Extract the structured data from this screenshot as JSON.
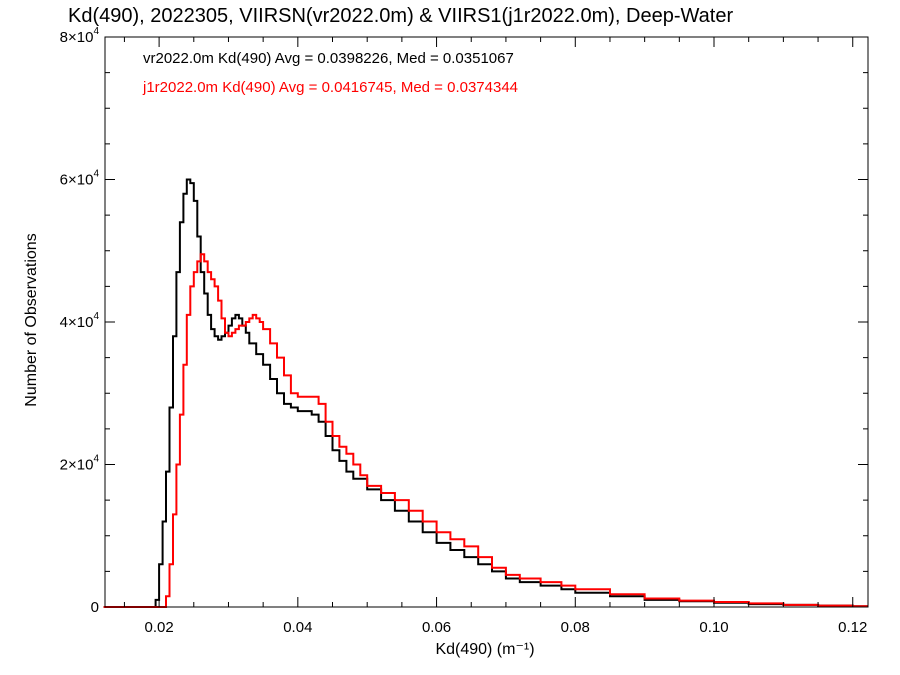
{
  "chart_data": {
    "type": "line",
    "step": true,
    "title": "Kd(490), 2022305, VIIRSN(vr2022.0m) & VIIRS1(j1r2022.0m), Deep-Water",
    "xlabel": "Kd(490) (m⁻¹)",
    "ylabel": "Number of Observations",
    "xlim": [
      0.0122,
      0.1222
    ],
    "ylim": [
      0,
      80000
    ],
    "xticks": [
      0.02,
      0.04,
      0.06,
      0.08,
      0.1,
      0.12
    ],
    "xtick_labels": [
      "0.02",
      "0.04",
      "0.06",
      "0.08",
      "0.10",
      "0.12"
    ],
    "yticks": [
      0,
      20000,
      40000,
      60000,
      80000
    ],
    "ytick_labels": [
      {
        "base": "0",
        "exp": ""
      },
      {
        "base": "2×10",
        "exp": "4"
      },
      {
        "base": "4×10",
        "exp": "4"
      },
      {
        "base": "6×10",
        "exp": "4"
      },
      {
        "base": "8×10",
        "exp": "4"
      }
    ],
    "annotations": [
      "vr2022.0m Kd(490) Avg = 0.0398226, Med = 0.0351067",
      "j1r2022.0m Kd(490) Avg = 0.0416745, Med = 0.0374344"
    ],
    "series": [
      {
        "color": "#000000",
        "x": [
          0.012,
          0.019,
          0.0195,
          0.02,
          0.0205,
          0.021,
          0.0215,
          0.022,
          0.0225,
          0.023,
          0.0235,
          0.024,
          0.0245,
          0.025,
          0.0255,
          0.026,
          0.0265,
          0.027,
          0.0275,
          0.028,
          0.0285,
          0.029,
          0.0295,
          0.03,
          0.0305,
          0.031,
          0.0315,
          0.032,
          0.0325,
          0.033,
          0.034,
          0.035,
          0.036,
          0.037,
          0.038,
          0.039,
          0.04,
          0.041,
          0.042,
          0.043,
          0.044,
          0.045,
          0.046,
          0.047,
          0.048,
          0.05,
          0.052,
          0.054,
          0.056,
          0.058,
          0.06,
          0.062,
          0.064,
          0.066,
          0.068,
          0.07,
          0.072,
          0.075,
          0.078,
          0.08,
          0.085,
          0.09,
          0.095,
          0.1,
          0.105,
          0.11,
          0.115,
          0.12,
          0.1222
        ],
        "y": [
          0,
          0,
          1000,
          6000,
          12000,
          19000,
          28000,
          38000,
          47000,
          54000,
          58000,
          60000,
          59500,
          57000,
          52000,
          47000,
          44000,
          41000,
          39000,
          38000,
          37500,
          38000,
          38500,
          39500,
          40500,
          41000,
          40500,
          39500,
          38500,
          37000,
          35500,
          34000,
          32000,
          30000,
          28500,
          28000,
          27500,
          27500,
          27000,
          26000,
          24000,
          22000,
          20500,
          19000,
          18000,
          16500,
          15000,
          13500,
          12000,
          10500,
          9000,
          8000,
          7000,
          6000,
          5000,
          4000,
          3500,
          3000,
          2500,
          2000,
          1500,
          1000,
          800,
          600,
          400,
          300,
          200,
          100,
          100
        ]
      },
      {
        "color": "#ff0000",
        "x": [
          0.012,
          0.0205,
          0.021,
          0.0215,
          0.022,
          0.0225,
          0.023,
          0.0235,
          0.024,
          0.0245,
          0.025,
          0.0255,
          0.026,
          0.0265,
          0.027,
          0.0275,
          0.028,
          0.0285,
          0.029,
          0.0295,
          0.03,
          0.0305,
          0.031,
          0.0315,
          0.032,
          0.0325,
          0.033,
          0.0335,
          0.034,
          0.0345,
          0.035,
          0.036,
          0.037,
          0.038,
          0.039,
          0.04,
          0.041,
          0.042,
          0.043,
          0.044,
          0.045,
          0.046,
          0.047,
          0.048,
          0.049,
          0.05,
          0.052,
          0.054,
          0.056,
          0.058,
          0.06,
          0.062,
          0.064,
          0.066,
          0.068,
          0.07,
          0.072,
          0.075,
          0.078,
          0.08,
          0.085,
          0.09,
          0.095,
          0.1,
          0.105,
          0.11,
          0.115,
          0.12,
          0.1222
        ],
        "y": [
          0,
          0,
          1500,
          6000,
          13000,
          20000,
          27000,
          34000,
          41000,
          45000,
          47000,
          48500,
          49500,
          48500,
          47000,
          46000,
          45000,
          43000,
          40500,
          38500,
          38000,
          38500,
          39000,
          39500,
          39500,
          40000,
          40500,
          41000,
          40500,
          40000,
          39000,
          37000,
          35000,
          32500,
          30000,
          29500,
          29500,
          29500,
          28500,
          26000,
          24000,
          22500,
          21500,
          20000,
          18500,
          17000,
          16000,
          15000,
          13500,
          12000,
          10500,
          9500,
          8500,
          7000,
          5500,
          4500,
          4000,
          3500,
          3000,
          2500,
          1800,
          1200,
          900,
          700,
          500,
          300,
          200,
          100,
          100
        ]
      }
    ]
  }
}
